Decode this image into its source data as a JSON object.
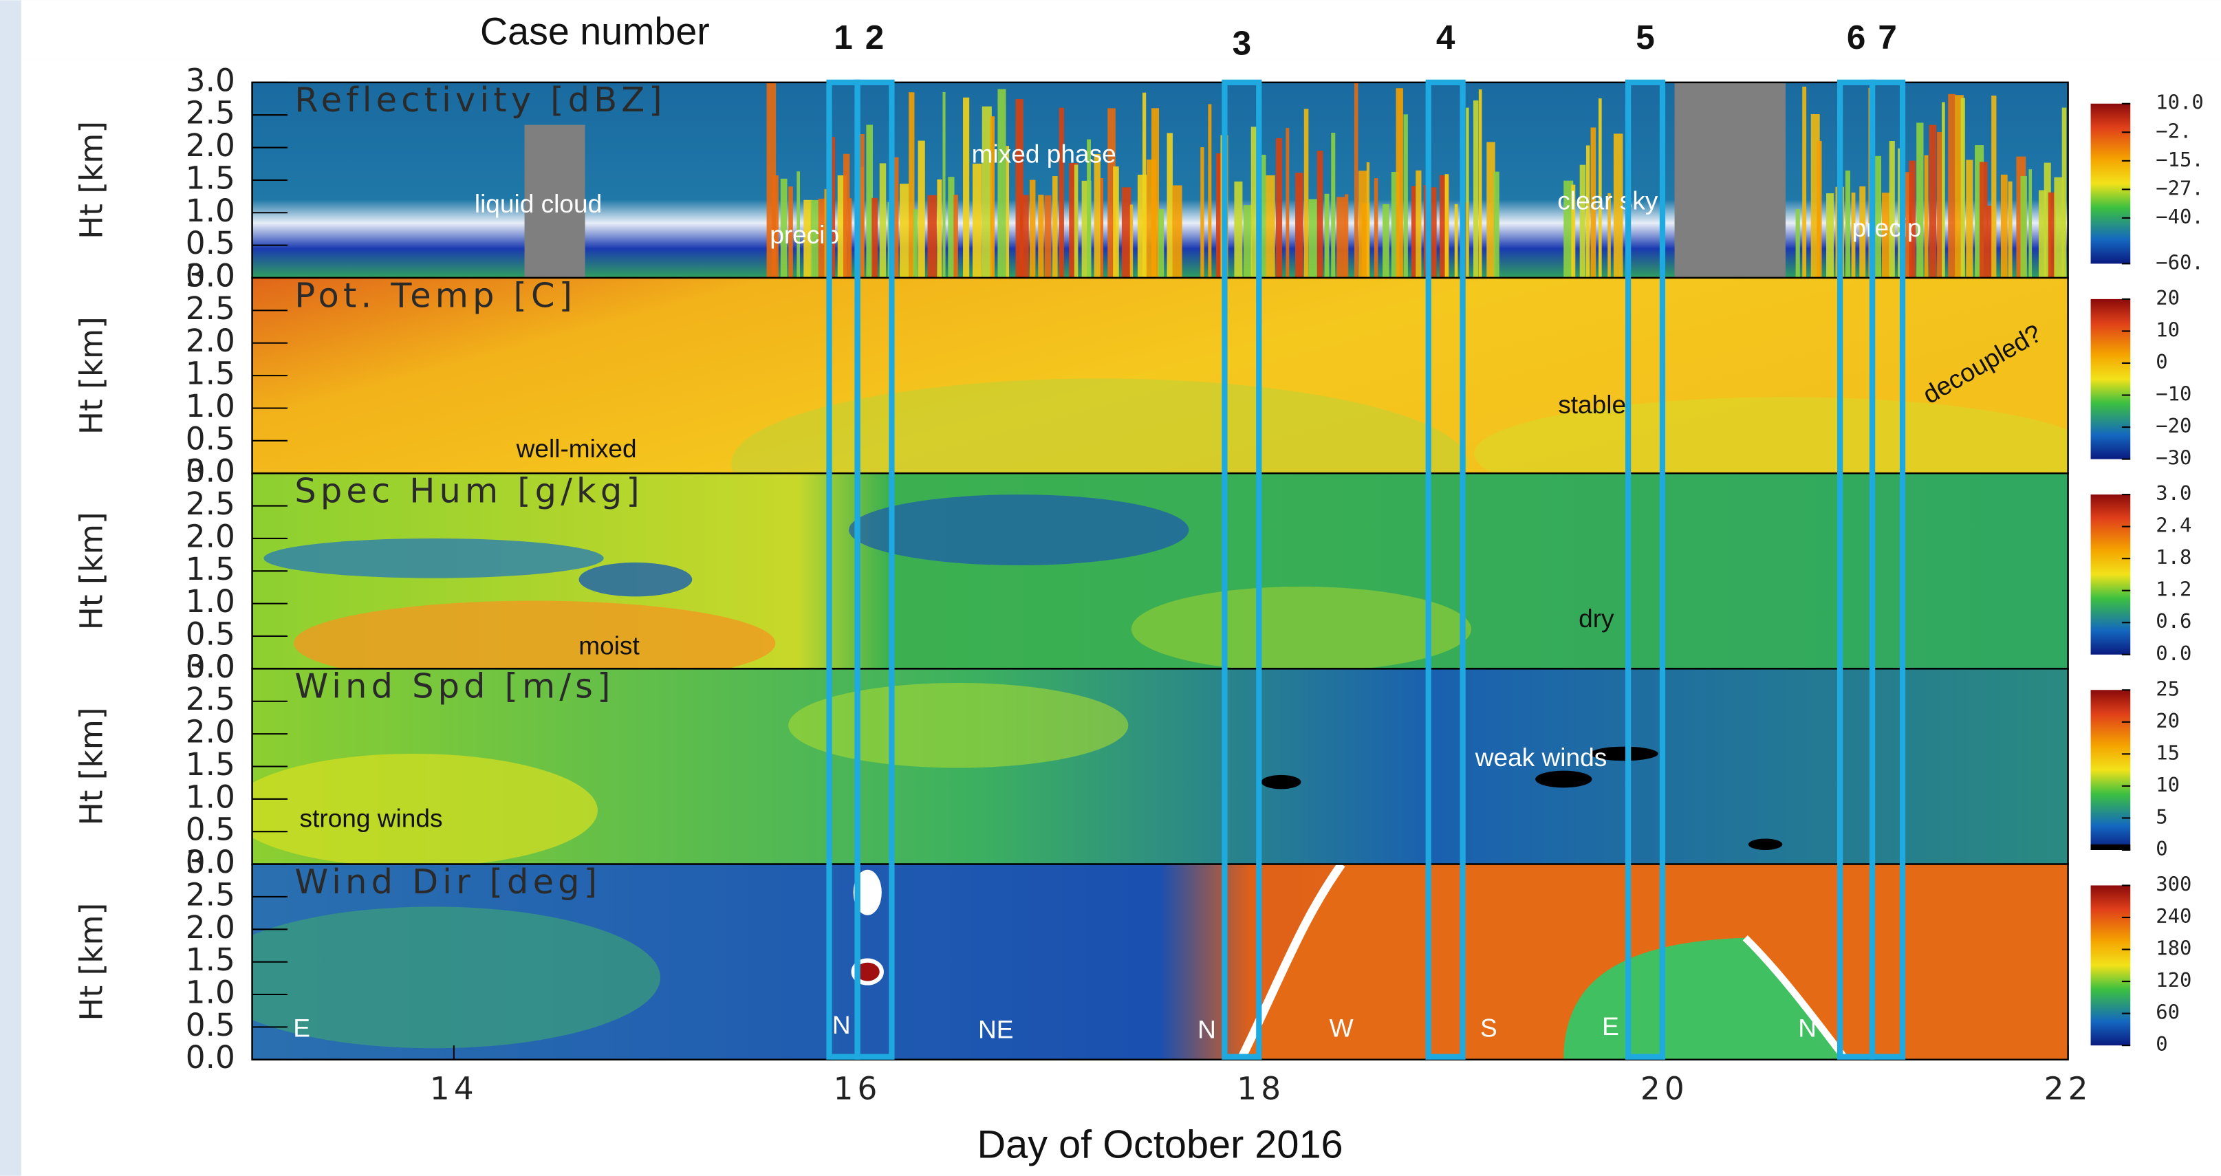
{
  "cases": {
    "title": "Case number",
    "boxes": [
      {
        "label": "1",
        "x": [
          15.86,
          16.0
        ]
      },
      {
        "label": "2",
        "x": [
          16.0,
          16.17
        ]
      },
      {
        "label": "3",
        "x": [
          17.82,
          17.99
        ]
      },
      {
        "label": "4",
        "x": [
          18.83,
          19.0
        ]
      },
      {
        "label": "5",
        "x": [
          19.82,
          19.99
        ]
      },
      {
        "label": "6",
        "x": [
          20.87,
          21.03
        ]
      },
      {
        "label": "7",
        "x": [
          21.03,
          21.18
        ]
      }
    ]
  },
  "chart_data": [
    {
      "type": "heatmap",
      "title": "Reflectivity [dBZ]",
      "y_label": "Ht [km]",
      "xlim": [
        13,
        22
      ],
      "ylim": [
        0,
        3
      ],
      "yticks": [
        {
          "value": 0,
          "label": "0.0"
        },
        {
          "value": 0.5,
          "label": "0.5"
        },
        {
          "value": 1,
          "label": "1.0"
        },
        {
          "value": 1.5,
          "label": "1.5"
        },
        {
          "value": 2,
          "label": "2.0"
        },
        {
          "value": 2.5,
          "label": "2.5"
        },
        {
          "value": 3,
          "label": "3.0"
        }
      ],
      "colorbar_ticks": [
        {
          "value": 10,
          "label": "10.0"
        },
        {
          "value": -2.5,
          "label": "−2."
        },
        {
          "value": -15,
          "label": "−15."
        },
        {
          "value": -27.5,
          "label": "−27."
        },
        {
          "value": -40,
          "label": "−40."
        },
        {
          "value": -60,
          "label": "−60."
        }
      ],
      "annotations": [
        "liquid cloud",
        "precip",
        "mixed phase",
        "clear sky",
        "precip"
      ]
    },
    {
      "type": "heatmap",
      "title": "Pot. Temp [C]",
      "y_label": "Ht [km]",
      "xlim": [
        13,
        22
      ],
      "ylim": [
        0,
        3
      ],
      "yticks": [
        {
          "value": 0,
          "label": "0.0"
        },
        {
          "value": 0.5,
          "label": "0.5"
        },
        {
          "value": 1,
          "label": "1.0"
        },
        {
          "value": 1.5,
          "label": "1.5"
        },
        {
          "value": 2,
          "label": "2.0"
        },
        {
          "value": 2.5,
          "label": "2.5"
        },
        {
          "value": 3,
          "label": "3.0"
        }
      ],
      "colorbar_ticks": [
        20,
        10,
        0,
        {
          "value": -10,
          "label": "−10"
        },
        {
          "value": -20,
          "label": "−20"
        },
        {
          "value": -30,
          "label": "−30"
        }
      ],
      "annotations": [
        "well-mixed",
        "stable",
        "decoupled?"
      ]
    },
    {
      "type": "heatmap",
      "title": "Spec Hum [g/kg]",
      "y_label": "Ht [km]",
      "xlim": [
        13,
        22
      ],
      "ylim": [
        0,
        3
      ],
      "yticks": [
        {
          "value": 0,
          "label": "0.0"
        },
        {
          "value": 0.5,
          "label": "0.5"
        },
        {
          "value": 1,
          "label": "1.0"
        },
        {
          "value": 1.5,
          "label": "1.5"
        },
        {
          "value": 2,
          "label": "2.0"
        },
        {
          "value": 2.5,
          "label": "2.5"
        },
        {
          "value": 3,
          "label": "3.0"
        }
      ],
      "colorbar_ticks": [
        {
          "value": 3,
          "label": "3.0"
        },
        2.4,
        1.8,
        1.2,
        0.6,
        {
          "value": 0,
          "label": "0.0"
        }
      ],
      "annotations": [
        "moist",
        "dry"
      ]
    },
    {
      "type": "heatmap",
      "title": "Wind Spd [m/s]",
      "y_label": "Ht [km]",
      "xlim": [
        13,
        22
      ],
      "ylim": [
        0,
        3
      ],
      "yticks": [
        {
          "value": 0,
          "label": "0.0"
        },
        {
          "value": 0.5,
          "label": "0.5"
        },
        {
          "value": 1,
          "label": "1.0"
        },
        {
          "value": 1.5,
          "label": "1.5"
        },
        {
          "value": 2,
          "label": "2.0"
        },
        {
          "value": 2.5,
          "label": "2.5"
        },
        {
          "value": 3,
          "label": "3.0"
        }
      ],
      "colorbar_ticks": [
        25,
        20,
        15,
        10,
        5,
        0
      ],
      "annotations": [
        "weak winds",
        "strong winds"
      ]
    },
    {
      "type": "heatmap",
      "title": "Wind Dir [deg]",
      "y_label": "Ht [km]",
      "xlim": [
        13,
        22
      ],
      "ylim": [
        0,
        3
      ],
      "yticks": [
        {
          "value": 0,
          "label": "0.0"
        },
        {
          "value": 0.5,
          "label": "0.5"
        },
        {
          "value": 1,
          "label": "1.0"
        },
        {
          "value": 1.5,
          "label": "1.5"
        },
        {
          "value": 2,
          "label": "2.0"
        },
        {
          "value": 2.5,
          "label": "2.5"
        },
        {
          "value": 3,
          "label": "3.0"
        }
      ],
      "colorbar_ticks": [
        300,
        240,
        180,
        120,
        60,
        0
      ],
      "annotations": [
        "E",
        "N",
        "NE",
        "N",
        "W",
        "S",
        "E",
        "N"
      ],
      "x_label": "Day of October 2016",
      "xticks": [
        14,
        16,
        18,
        20,
        22
      ]
    }
  ]
}
